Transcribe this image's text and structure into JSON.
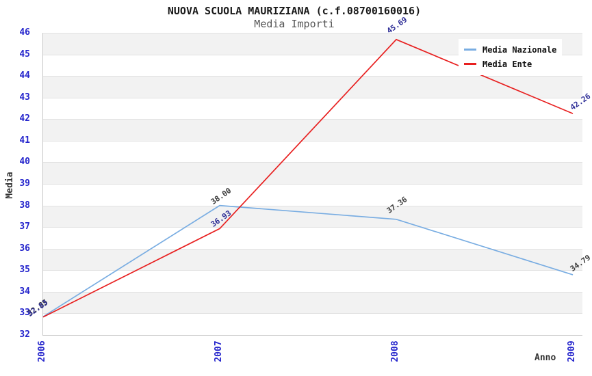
{
  "chart_data": {
    "type": "line",
    "title": "NUOVA SCUOLA MAURIZIANA (c.f.08700160016)",
    "subtitle": "Media Importi",
    "xlabel": "Anno",
    "ylabel": "Media",
    "categories": [
      "2006",
      "2007",
      "2008",
      "2009"
    ],
    "ylim": [
      32,
      46
    ],
    "ytick_step": 1,
    "grid": "horizontal-bands",
    "legend_position": "top-right",
    "colors": {
      "tick_label": "#2424cc",
      "band_gray": "#f2f2f2",
      "gridline": "#e2e2e2",
      "nazionale_line": "#79ade2",
      "ente_line": "#e82020",
      "nazionale_point_label": "#3d3d3d",
      "ente_point_label": "#2d2d96"
    },
    "series": [
      {
        "name": "Media Nazionale",
        "color": "#79ade2",
        "label_color": "#3d3d3d",
        "values": [
          32.85,
          38.0,
          37.36,
          34.79
        ],
        "point_labels": [
          "32.85",
          "38.00",
          "37.36",
          "34.79"
        ]
      },
      {
        "name": "Media Ente",
        "color": "#e82020",
        "label_color": "#2d2d96",
        "values": [
          32.83,
          36.93,
          45.69,
          42.26
        ],
        "point_labels": [
          "32.83",
          "36.93",
          "45.69",
          "42.26"
        ]
      }
    ]
  }
}
